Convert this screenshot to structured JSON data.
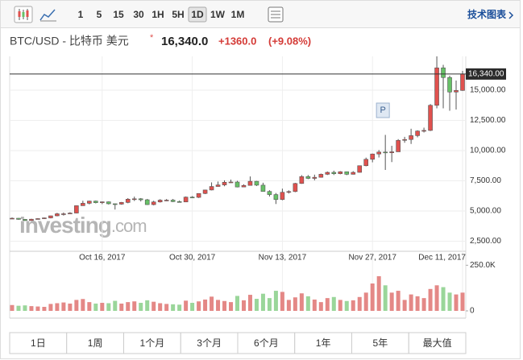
{
  "toolbar": {
    "intervals": [
      "1",
      "5",
      "15",
      "30",
      "1H",
      "5H",
      "1D",
      "1W",
      "1M"
    ],
    "selected_index": 6,
    "tech_chart": "技术图表"
  },
  "header": {
    "pair": "BTC/USD - 比特币 美元",
    "price": "16,340.0",
    "change": "+1360.0",
    "change_pct": "(+9.08%)"
  },
  "chart_data": {
    "type": "candlestick",
    "up_color": "#e0514e",
    "down_color": "#67c167",
    "volume_up_color": "#e48886",
    "volume_down_color": "#9ad69a",
    "grid": true,
    "x": [
      "2017-10-02",
      "2017-10-03",
      "2017-10-04",
      "2017-10-05",
      "2017-10-06",
      "2017-10-07",
      "2017-10-08",
      "2017-10-09",
      "2017-10-10",
      "2017-10-11",
      "2017-10-12",
      "2017-10-13",
      "2017-10-14",
      "2017-10-15",
      "2017-10-16",
      "2017-10-17",
      "2017-10-18",
      "2017-10-19",
      "2017-10-20",
      "2017-10-21",
      "2017-10-22",
      "2017-10-23",
      "2017-10-24",
      "2017-10-25",
      "2017-10-26",
      "2017-10-27",
      "2017-10-28",
      "2017-10-29",
      "2017-10-30",
      "2017-10-31",
      "2017-11-01",
      "2017-11-02",
      "2017-11-03",
      "2017-11-04",
      "2017-11-05",
      "2017-11-06",
      "2017-11-07",
      "2017-11-08",
      "2017-11-09",
      "2017-11-10",
      "2017-11-11",
      "2017-11-12",
      "2017-11-13",
      "2017-11-14",
      "2017-11-15",
      "2017-11-16",
      "2017-11-17",
      "2017-11-18",
      "2017-11-19",
      "2017-11-20",
      "2017-11-21",
      "2017-11-22",
      "2017-11-23",
      "2017-11-24",
      "2017-11-25",
      "2017-11-26",
      "2017-11-27",
      "2017-11-28",
      "2017-11-29",
      "2017-11-30",
      "2017-12-01",
      "2017-12-02",
      "2017-12-03",
      "2017-12-04",
      "2017-12-05",
      "2017-12-06",
      "2017-12-07",
      "2017-12-08",
      "2017-12-09",
      "2017-12-10",
      "2017-12-11"
    ],
    "open": [
      4390,
      4400,
      4310,
      4210,
      4320,
      4370,
      4430,
      4600,
      4770,
      4770,
      4830,
      5440,
      5640,
      5820,
      5690,
      5760,
      5600,
      5570,
      5710,
      5980,
      6010,
      5930,
      5530,
      5750,
      5900,
      5900,
      5780,
      5750,
      6150,
      6130,
      6450,
      6740,
      7030,
      7160,
      7380,
      7400,
      6990,
      7120,
      7460,
      7140,
      6620,
      6360,
      5950,
      6550,
      6610,
      7280,
      7850,
      7700,
      7790,
      8040,
      8200,
      8090,
      8250,
      8040,
      8200,
      8750,
      9280,
      9720,
      9880,
      9820,
      9900,
      10850,
      10920,
      11240,
      11620,
      11670,
      13750,
      16850,
      16050,
      14850,
      14980
    ],
    "high": [
      4470,
      4420,
      4340,
      4360,
      4410,
      4460,
      4610,
      4850,
      4880,
      4900,
      5460,
      5850,
      5850,
      5860,
      5780,
      5790,
      5620,
      5750,
      6070,
      6190,
      6070,
      6000,
      5850,
      5980,
      5990,
      6000,
      5870,
      6200,
      6230,
      6470,
      6760,
      7370,
      7440,
      7540,
      7600,
      7500,
      7210,
      7860,
      7490,
      7340,
      6720,
      6490,
      6850,
      6710,
      7330,
      7970,
      7980,
      8010,
      8100,
      8270,
      8340,
      8300,
      8270,
      8300,
      8760,
      9420,
      9750,
      10050,
      11300,
      10400,
      10950,
      11140,
      11810,
      11680,
      11900,
      13850,
      17800,
      17100,
      16200,
      15800,
      16600
    ],
    "low": [
      4330,
      4280,
      4170,
      4180,
      4310,
      4350,
      4390,
      4560,
      4620,
      4770,
      4810,
      5430,
      5550,
      5630,
      5570,
      5540,
      5120,
      5520,
      5640,
      5830,
      5790,
      5500,
      5470,
      5700,
      5820,
      5740,
      5710,
      5740,
      6070,
      6080,
      6400,
      6710,
      7020,
      7050,
      7320,
      6960,
      6980,
      7100,
      7070,
      6610,
      6200,
      5580,
      5890,
      6450,
      6560,
      7250,
      7640,
      7540,
      7760,
      7980,
      7980,
      8040,
      7970,
      8020,
      8180,
      8700,
      9030,
      9430,
      8400,
      9050,
      9900,
      10650,
      10550,
      11100,
      11500,
      11620,
      13500,
      13500,
      13300,
      13400,
      14950
    ],
    "close": [
      4400,
      4310,
      4210,
      4320,
      4370,
      4430,
      4600,
      4770,
      4770,
      4830,
      5440,
      5640,
      5820,
      5690,
      5760,
      5600,
      5570,
      5710,
      5980,
      6010,
      5930,
      5530,
      5750,
      5900,
      5900,
      5780,
      5750,
      6150,
      6130,
      6450,
      6740,
      7030,
      7160,
      7380,
      7400,
      6990,
      7120,
      7460,
      7140,
      6620,
      6360,
      5950,
      6550,
      6610,
      7280,
      7850,
      7700,
      7790,
      8040,
      8200,
      8090,
      8250,
      8040,
      8200,
      8750,
      9280,
      9720,
      9880,
      9820,
      9900,
      10850,
      10920,
      11240,
      11620,
      11670,
      13750,
      16850,
      16050,
      14850,
      14980,
      16340
    ],
    "volume": [
      32000,
      28000,
      30000,
      26000,
      24000,
      22000,
      38000,
      42000,
      46000,
      40000,
      60000,
      65000,
      48000,
      40000,
      44000,
      42000,
      55000,
      40000,
      48000,
      52000,
      44000,
      58000,
      50000,
      42000,
      38000,
      36000,
      34000,
      56000,
      44000,
      52000,
      62000,
      78000,
      60000,
      54000,
      48000,
      82000,
      58000,
      88000,
      66000,
      94000,
      70000,
      110000,
      104000,
      60000,
      74000,
      96000,
      80000,
      62000,
      48000,
      70000,
      76000,
      60000,
      54000,
      58000,
      76000,
      100000,
      150000,
      190000,
      140000,
      100000,
      110000,
      60000,
      90000,
      80000,
      70000,
      120000,
      140000,
      130000,
      100000,
      90000,
      100000
    ],
    "xlim": [
      "2017-10-02",
      "2017-12-11"
    ],
    "xticks": [
      {
        "value": "2017-10-16",
        "label": "Oct 16, 2017"
      },
      {
        "value": "2017-10-30",
        "label": "Oct 30, 2017"
      },
      {
        "value": "2017-11-13",
        "label": "Nov 13, 2017"
      },
      {
        "value": "2017-11-27",
        "label": "Nov 27, 2017"
      },
      {
        "value": "2017-12-11",
        "label": "Dec 11, 2017"
      }
    ],
    "ylim": [
      1800,
      17800
    ],
    "yticks": [
      {
        "value": 2500,
        "label": "2,500.00"
      },
      {
        "value": 5000,
        "label": "5,000.00"
      },
      {
        "value": 7500,
        "label": "7,500.00"
      },
      {
        "value": 10000,
        "label": "10,000.00"
      },
      {
        "value": 12500,
        "label": "12,500.00"
      },
      {
        "value": 15000,
        "label": "15,000.00"
      }
    ],
    "last_price": {
      "value": 16340,
      "label": "16,340.00"
    },
    "volume_ylim": [
      0,
      300000
    ],
    "volume_yticks": [
      0,
      {
        "value": 250000,
        "label": "250.0K"
      }
    ],
    "marker": {
      "x": "2017-11-30",
      "label": "P"
    },
    "watermark": [
      "investing",
      ".com"
    ]
  },
  "range_buttons": [
    "1日",
    "1周",
    "1个月",
    "3个月",
    "6个月",
    "1年",
    "5年",
    "最大值"
  ]
}
